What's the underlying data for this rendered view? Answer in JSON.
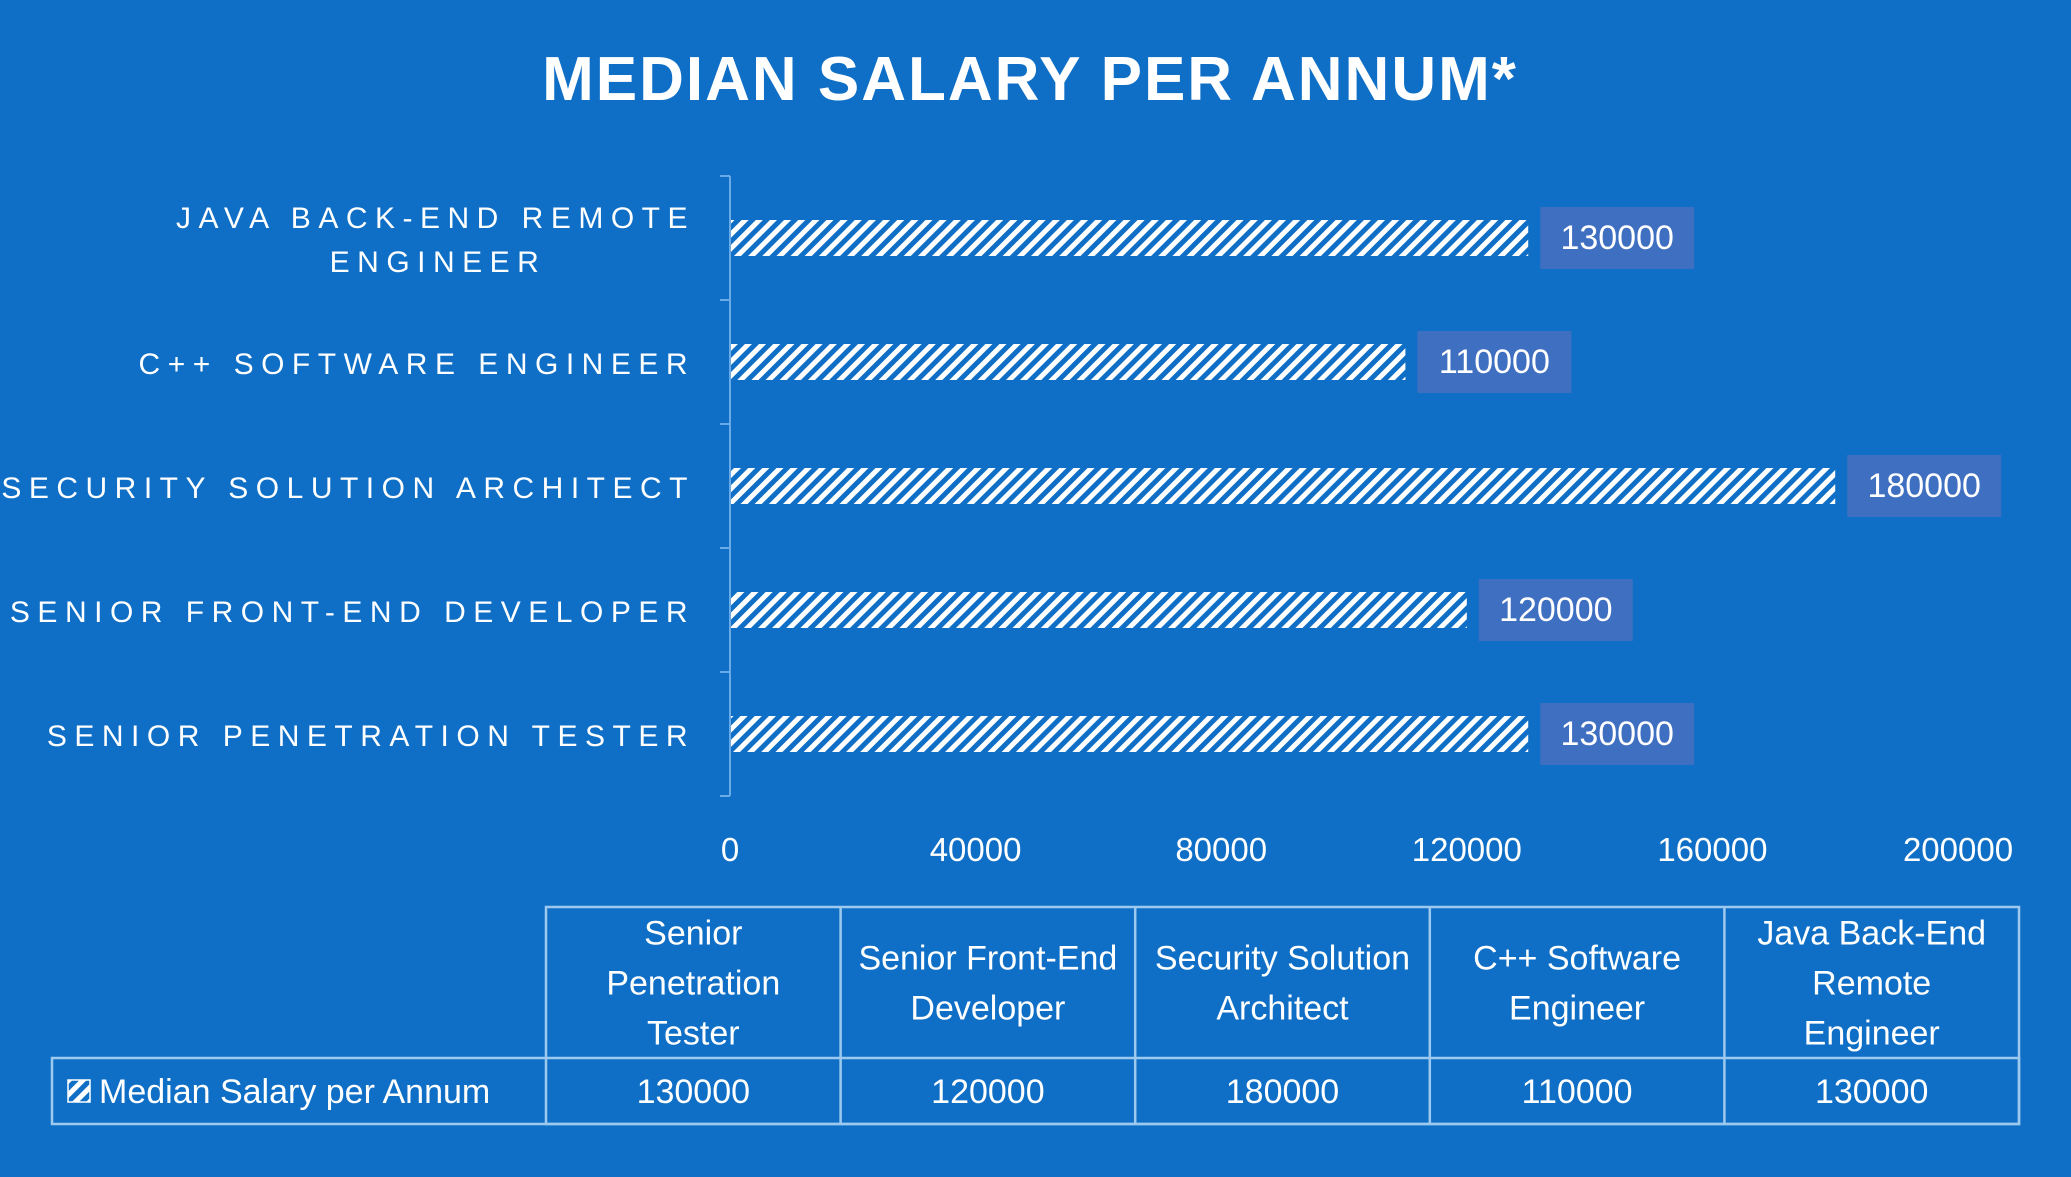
{
  "chart_data": {
    "type": "bar",
    "orientation": "horizontal",
    "title": "MEDIAN SALARY PER ANNUM*",
    "categories": [
      "Senior Penetration Tester",
      "Senior Front-End Developer",
      "Security Solution Architect",
      "C++ Software Engineer",
      "Java Back-End Remote Engineer"
    ],
    "axis_category_labels": [
      [
        "SENIOR PENETRATION TESTER"
      ],
      [
        "SENIOR FRONT-END DEVELOPER"
      ],
      [
        "SECURITY SOLUTION ARCHITECT"
      ],
      [
        "C++ SOFTWARE ENGINEER"
      ],
      [
        "JAVA BACK-END REMOTE",
        "ENGINEER"
      ]
    ],
    "table_header_labels": [
      [
        "Senior",
        "Penetration",
        "Tester"
      ],
      [
        "Senior Front-End",
        "Developer"
      ],
      [
        "Security Solution",
        "Architect"
      ],
      [
        "C++ Software",
        "Engineer"
      ],
      [
        "Java Back-End",
        "Remote",
        "Engineer"
      ]
    ],
    "series": [
      {
        "name": "Median Salary per Annum",
        "values": [
          130000,
          120000,
          180000,
          110000,
          130000
        ]
      }
    ],
    "xlim": [
      0,
      200000
    ],
    "xticks": [
      0,
      40000,
      80000,
      120000,
      160000,
      200000
    ],
    "grid": false,
    "legend": "data-table",
    "data_labels": true,
    "colors": {
      "background": "#0f6fc6",
      "bar_stripe": "#ffffff",
      "label_box": "#3f6fc0",
      "table_line": "#9ec9ee",
      "axis_line": "#6aaae6"
    }
  }
}
